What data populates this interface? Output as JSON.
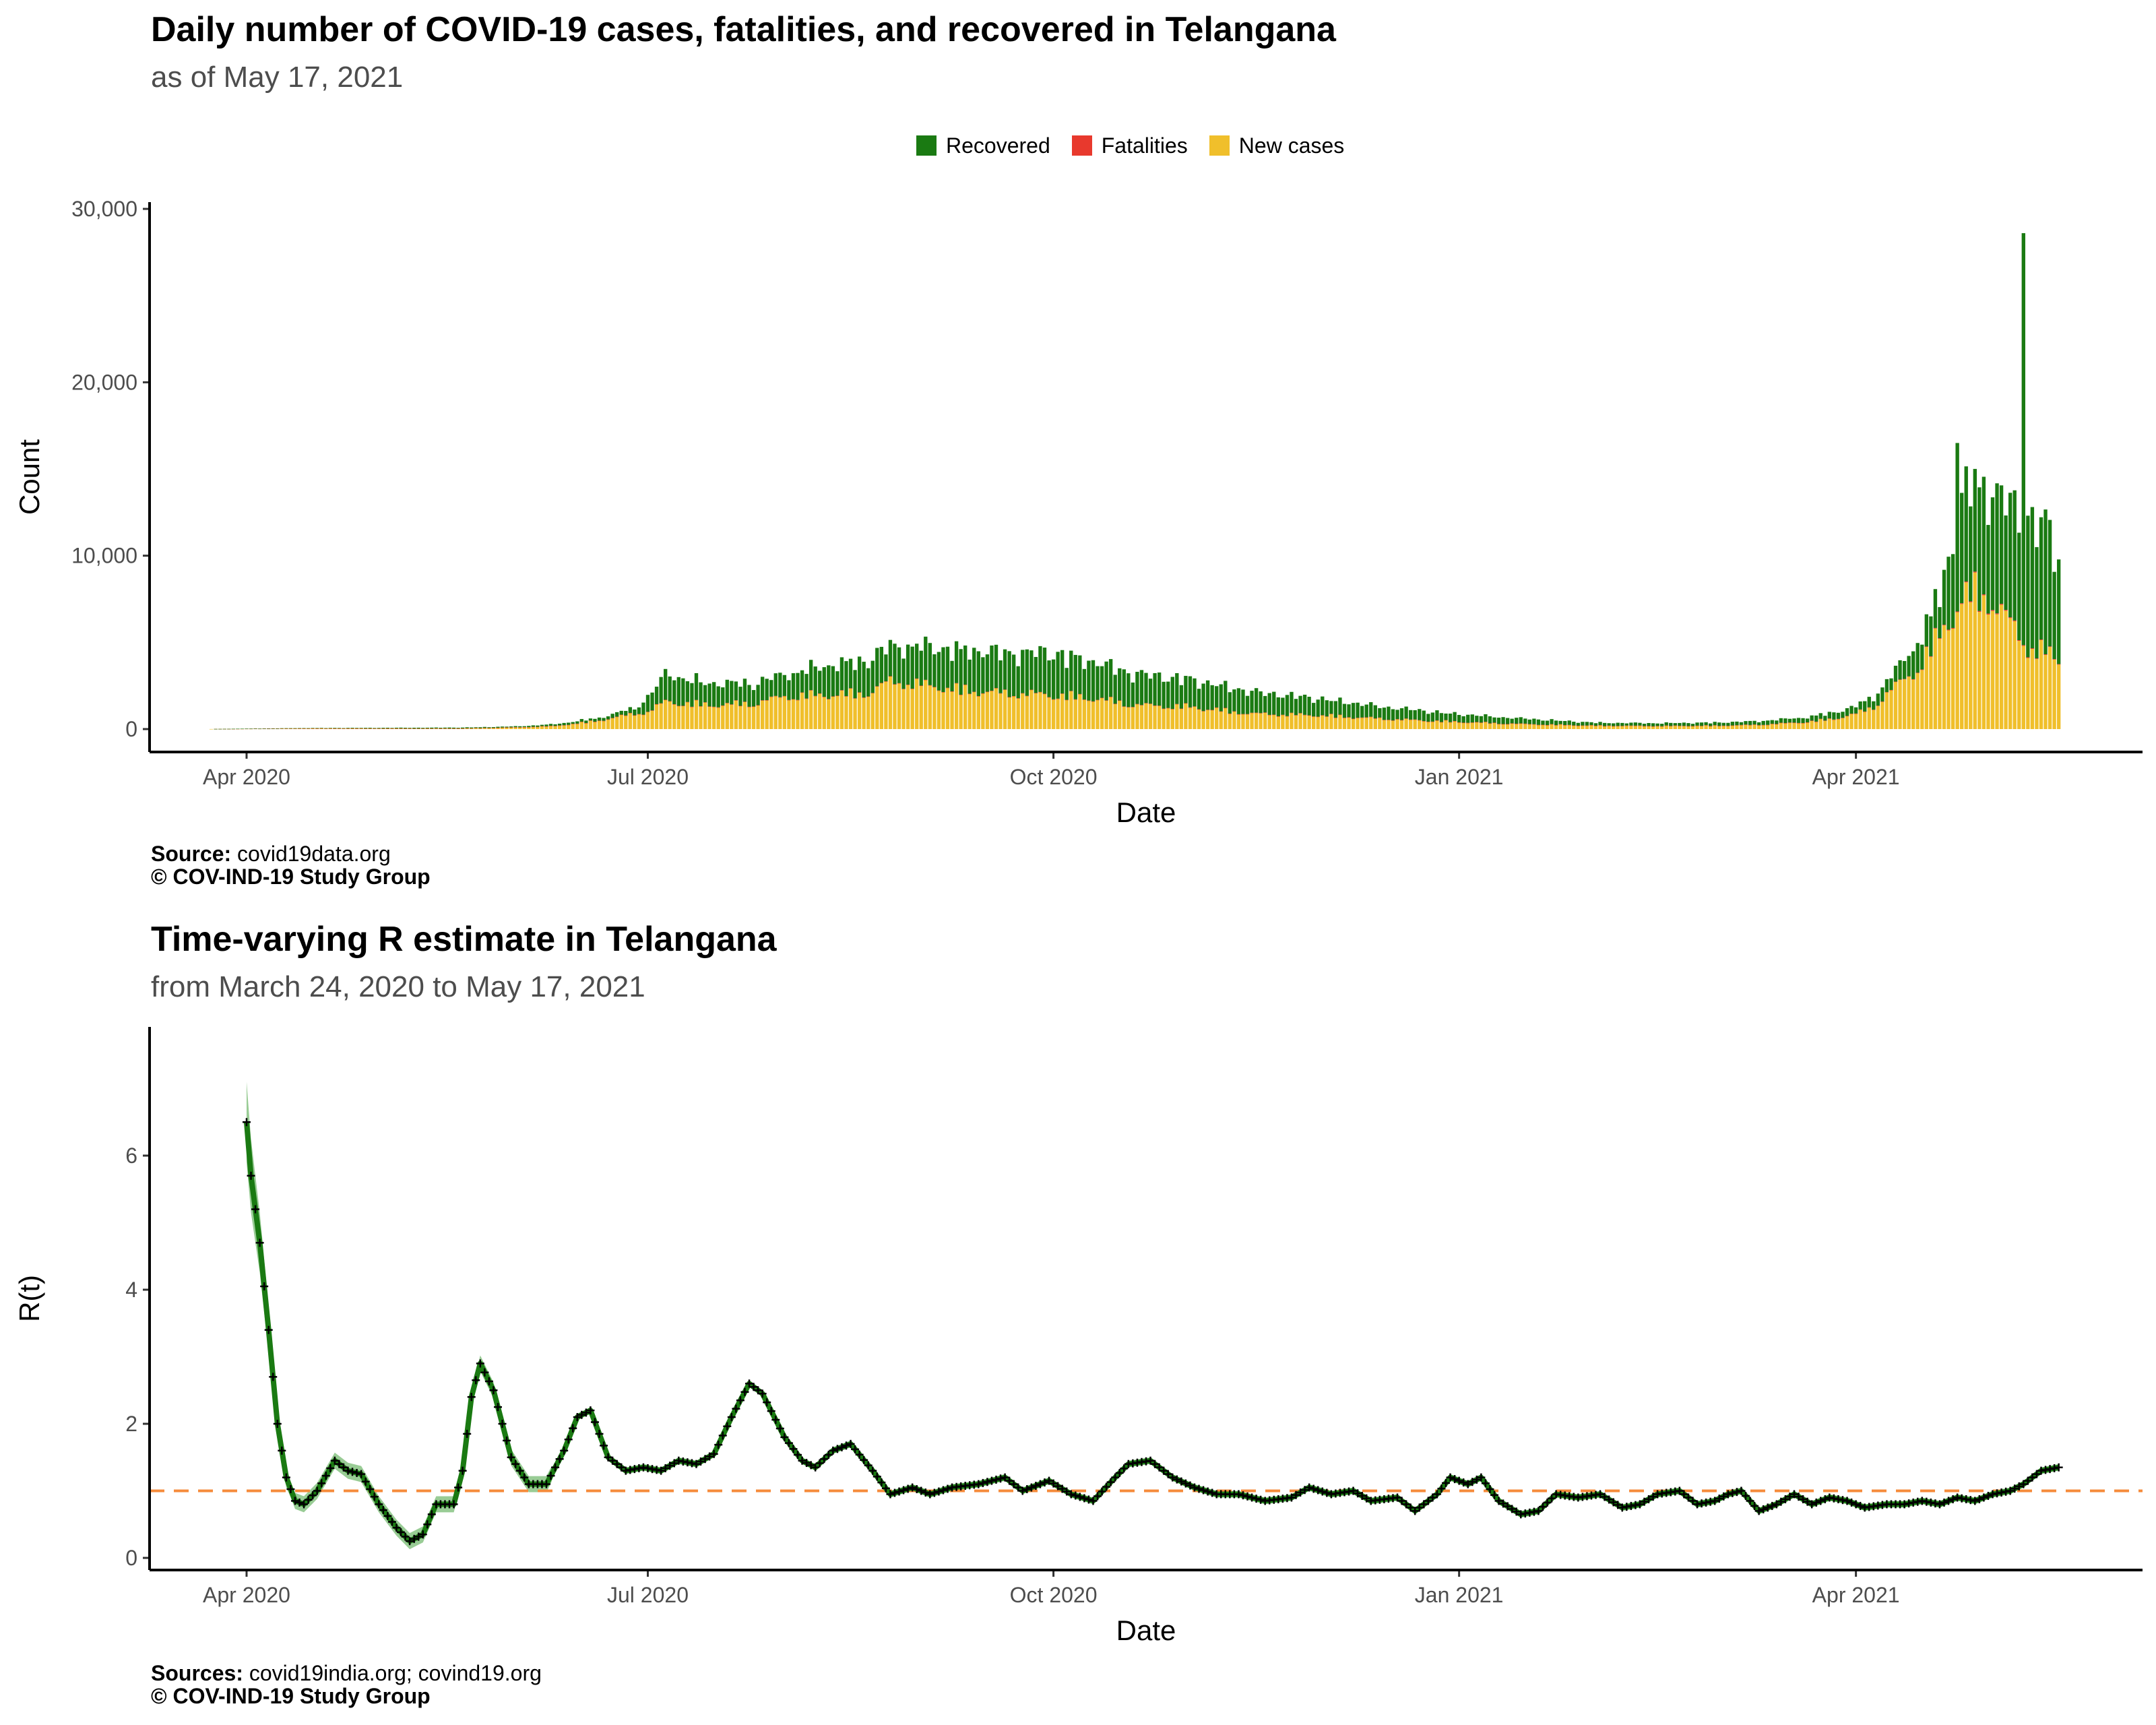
{
  "top": {
    "title": "Daily number of COVID-19 cases, fatalities, and recovered in Telangana",
    "subtitle": "as of May 17, 2021",
    "legend": [
      {
        "label": "Recovered",
        "color": "#1a7a12"
      },
      {
        "label": "Fatalities",
        "color": "#e8392d"
      },
      {
        "label": "New cases",
        "color": "#f0bf2b"
      }
    ],
    "source_label": "Source:",
    "source_text": "covid19data.org",
    "copyright": "© COV-IND-19 Study Group"
  },
  "bottom": {
    "title": "Time-varying R estimate in Telangana",
    "subtitle": "from March 24, 2020 to May 17, 2021",
    "source_label": "Sources:",
    "source_text": "covid19india.org; covind19.org",
    "copyright": "© COV-IND-19 Study Group"
  },
  "chart_data": [
    {
      "type": "bar",
      "stacked": true,
      "title": "Daily number of COVID-19 cases, fatalities, and recovered in Telangana",
      "subtitle": "as of May 17, 2021",
      "xlabel": "Date",
      "ylabel": "Count",
      "x_ticks": [
        "Apr 2020",
        "Jul 2020",
        "Oct 2020",
        "Jan 2021",
        "Apr 2021"
      ],
      "y_ticks": [
        "0",
        "10,000",
        "20,000",
        "30,000"
      ],
      "ylim": [
        0,
        30000
      ],
      "xlim": [
        "2020-03-10",
        "2021-06-05"
      ],
      "legend_position": "top",
      "series": [
        {
          "name": "New cases",
          "color": "#f0bf2b",
          "points": [
            [
              "2020-03-24",
              5
            ],
            [
              "2020-04-15",
              40
            ],
            [
              "2020-05-10",
              35
            ],
            [
              "2020-05-20",
              40
            ],
            [
              "2020-06-01",
              100
            ],
            [
              "2020-06-10",
              180
            ],
            [
              "2020-06-20",
              500
            ],
            [
              "2020-06-28",
              900
            ],
            [
              "2020-07-01",
              1000
            ],
            [
              "2020-07-05",
              1600
            ],
            [
              "2020-07-15",
              1400
            ],
            [
              "2020-07-25",
              1500
            ],
            [
              "2020-08-01",
              1900
            ],
            [
              "2020-08-10",
              2000
            ],
            [
              "2020-08-20",
              2100
            ],
            [
              "2020-08-25",
              2800
            ],
            [
              "2020-09-01",
              2600
            ],
            [
              "2020-09-10",
              2300
            ],
            [
              "2020-09-20",
              2100
            ],
            [
              "2020-10-01",
              2000
            ],
            [
              "2020-10-10",
              1800
            ],
            [
              "2020-10-20",
              1400
            ],
            [
              "2020-11-01",
              1300
            ],
            [
              "2020-11-15",
              900
            ],
            [
              "2020-12-01",
              800
            ],
            [
              "2020-12-15",
              600
            ],
            [
              "2021-01-01",
              420
            ],
            [
              "2021-01-15",
              300
            ],
            [
              "2021-02-01",
              200
            ],
            [
              "2021-02-15",
              180
            ],
            [
              "2021-03-01",
              200
            ],
            [
              "2021-03-10",
              250
            ],
            [
              "2021-03-20",
              400
            ],
            [
              "2021-03-27",
              600
            ],
            [
              "2021-04-01",
              900
            ],
            [
              "2021-04-05",
              1300
            ],
            [
              "2021-04-10",
              2500
            ],
            [
              "2021-04-15",
              3500
            ],
            [
              "2021-04-20",
              5500
            ],
            [
              "2021-04-25",
              7500
            ],
            [
              "2021-04-28",
              8000
            ],
            [
              "2021-05-01",
              7700
            ],
            [
              "2021-05-05",
              6500
            ],
            [
              "2021-05-10",
              4800
            ],
            [
              "2021-05-14",
              4500
            ],
            [
              "2021-05-17",
              3900
            ]
          ]
        },
        {
          "name": "Fatalities",
          "color": "#e8392d",
          "points": [
            [
              "2020-03-24",
              0
            ],
            [
              "2020-06-01",
              3
            ],
            [
              "2020-08-01",
              10
            ],
            [
              "2020-10-01",
              8
            ],
            [
              "2021-01-01",
              3
            ],
            [
              "2021-04-01",
              5
            ],
            [
              "2021-05-01",
              55
            ],
            [
              "2021-05-17",
              30
            ]
          ]
        },
        {
          "name": "Recovered",
          "color": "#1a7a12",
          "points": [
            [
              "2020-03-24",
              0
            ],
            [
              "2020-04-15",
              20
            ],
            [
              "2020-05-10",
              40
            ],
            [
              "2020-06-01",
              50
            ],
            [
              "2020-06-20",
              150
            ],
            [
              "2020-06-28",
              300
            ],
            [
              "2020-07-05",
              1500
            ],
            [
              "2020-07-15",
              1200
            ],
            [
              "2020-07-25",
              1100
            ],
            [
              "2020-08-01",
              1200
            ],
            [
              "2020-08-10",
              1600
            ],
            [
              "2020-08-20",
              1800
            ],
            [
              "2020-09-01",
              2100
            ],
            [
              "2020-09-10",
              2200
            ],
            [
              "2020-09-20",
              2200
            ],
            [
              "2020-10-01",
              2300
            ],
            [
              "2020-10-10",
              2000
            ],
            [
              "2020-10-20",
              1700
            ],
            [
              "2020-11-01",
              1500
            ],
            [
              "2020-11-15",
              1200
            ],
            [
              "2020-12-01",
              900
            ],
            [
              "2020-12-15",
              650
            ],
            [
              "2021-01-01",
              420
            ],
            [
              "2021-01-15",
              300
            ],
            [
              "2021-02-01",
              160
            ],
            [
              "2021-02-15",
              150
            ],
            [
              "2021-03-01",
              170
            ],
            [
              "2021-03-10",
              200
            ],
            [
              "2021-03-20",
              250
            ],
            [
              "2021-03-27",
              350
            ],
            [
              "2021-04-01",
              400
            ],
            [
              "2021-04-05",
              600
            ],
            [
              "2021-04-10",
              800
            ],
            [
              "2021-04-15",
              1500
            ],
            [
              "2021-04-20",
              2200
            ],
            [
              "2021-04-25",
              5500
            ],
            [
              "2021-04-28",
              6000
            ],
            [
              "2021-05-01",
              6000
            ],
            [
              "2021-05-05",
              6500
            ],
            [
              "2021-05-08",
              6200
            ],
            [
              "2021-05-10",
              7000
            ],
            [
              "2021-05-14",
              7000
            ],
            [
              "2021-05-17",
              5600
            ]
          ],
          "spikes": [
            [
              "2021-04-24",
              16500
            ],
            [
              "2021-05-09",
              28600
            ]
          ]
        }
      ]
    },
    {
      "type": "line",
      "title": "Time-varying R estimate in Telangana",
      "subtitle": "from March 24, 2020 to May 17, 2021",
      "xlabel": "Date",
      "ylabel": "R(t)",
      "x_ticks": [
        "Apr 2020",
        "Jul 2020",
        "Oct 2020",
        "Jan 2021",
        "Apr 2021"
      ],
      "y_ticks": [
        "0",
        "2",
        "4",
        "6"
      ],
      "ylim": [
        -0.2,
        7.9
      ],
      "xlim": [
        "2020-03-10",
        "2021-06-05"
      ],
      "reference_line": {
        "y": 1,
        "color": "#f58b3b",
        "style": "dashed"
      },
      "line_color": "#1a7a12",
      "band_color": "#7fbf7a",
      "series": [
        {
          "name": "R(t)",
          "points": [
            [
              "2020-04-01",
              6.5
            ],
            [
              "2020-04-02",
              5.7
            ],
            [
              "2020-04-04",
              4.7
            ],
            [
              "2020-04-06",
              3.4
            ],
            [
              "2020-04-08",
              2.0
            ],
            [
              "2020-04-10",
              1.2
            ],
            [
              "2020-04-12",
              0.85
            ],
            [
              "2020-04-14",
              0.8
            ],
            [
              "2020-04-17",
              1.0
            ],
            [
              "2020-04-21",
              1.45
            ],
            [
              "2020-04-24",
              1.3
            ],
            [
              "2020-04-27",
              1.25
            ],
            [
              "2020-05-01",
              0.8
            ],
            [
              "2020-05-05",
              0.45
            ],
            [
              "2020-05-08",
              0.25
            ],
            [
              "2020-05-11",
              0.35
            ],
            [
              "2020-05-14",
              0.8
            ],
            [
              "2020-05-18",
              0.8
            ],
            [
              "2020-05-20",
              1.3
            ],
            [
              "2020-05-22",
              2.4
            ],
            [
              "2020-05-24",
              2.9
            ],
            [
              "2020-05-27",
              2.5
            ],
            [
              "2020-05-31",
              1.5
            ],
            [
              "2020-06-04",
              1.1
            ],
            [
              "2020-06-08",
              1.1
            ],
            [
              "2020-06-12",
              1.6
            ],
            [
              "2020-06-15",
              2.1
            ],
            [
              "2020-06-18",
              2.2
            ],
            [
              "2020-06-22",
              1.5
            ],
            [
              "2020-06-26",
              1.3
            ],
            [
              "2020-06-30",
              1.35
            ],
            [
              "2020-07-04",
              1.3
            ],
            [
              "2020-07-08",
              1.45
            ],
            [
              "2020-07-12",
              1.4
            ],
            [
              "2020-07-16",
              1.55
            ],
            [
              "2020-07-20",
              2.1
            ],
            [
              "2020-07-24",
              2.6
            ],
            [
              "2020-07-27",
              2.45
            ],
            [
              "2020-08-01",
              1.8
            ],
            [
              "2020-08-05",
              1.45
            ],
            [
              "2020-08-08",
              1.35
            ],
            [
              "2020-08-12",
              1.6
            ],
            [
              "2020-08-16",
              1.7
            ],
            [
              "2020-08-21",
              1.3
            ],
            [
              "2020-08-25",
              0.95
            ],
            [
              "2020-08-30",
              1.05
            ],
            [
              "2020-09-03",
              0.95
            ],
            [
              "2020-09-08",
              1.05
            ],
            [
              "2020-09-14",
              1.1
            ],
            [
              "2020-09-20",
              1.2
            ],
            [
              "2020-09-24",
              1.0
            ],
            [
              "2020-09-30",
              1.15
            ],
            [
              "2020-10-05",
              0.95
            ],
            [
              "2020-10-10",
              0.85
            ],
            [
              "2020-10-15",
              1.2
            ],
            [
              "2020-10-18",
              1.4
            ],
            [
              "2020-10-23",
              1.45
            ],
            [
              "2020-10-28",
              1.2
            ],
            [
              "2020-11-02",
              1.05
            ],
            [
              "2020-11-07",
              0.95
            ],
            [
              "2020-11-12",
              0.95
            ],
            [
              "2020-11-18",
              0.85
            ],
            [
              "2020-11-24",
              0.9
            ],
            [
              "2020-11-28",
              1.05
            ],
            [
              "2020-12-03",
              0.95
            ],
            [
              "2020-12-08",
              1.0
            ],
            [
              "2020-12-12",
              0.85
            ],
            [
              "2020-12-18",
              0.9
            ],
            [
              "2020-12-22",
              0.7
            ],
            [
              "2020-12-27",
              0.95
            ],
            [
              "2020-12-30",
              1.2
            ],
            [
              "2021-01-03",
              1.1
            ],
            [
              "2021-01-06",
              1.2
            ],
            [
              "2021-01-10",
              0.85
            ],
            [
              "2021-01-15",
              0.65
            ],
            [
              "2021-01-19",
              0.7
            ],
            [
              "2021-01-23",
              0.95
            ],
            [
              "2021-01-28",
              0.9
            ],
            [
              "2021-02-02",
              0.95
            ],
            [
              "2021-02-07",
              0.75
            ],
            [
              "2021-02-11",
              0.8
            ],
            [
              "2021-02-15",
              0.95
            ],
            [
              "2021-02-20",
              1.0
            ],
            [
              "2021-02-24",
              0.8
            ],
            [
              "2021-02-28",
              0.85
            ],
            [
              "2021-03-03",
              0.95
            ],
            [
              "2021-03-06",
              1.0
            ],
            [
              "2021-03-10",
              0.7
            ],
            [
              "2021-03-14",
              0.8
            ],
            [
              "2021-03-18",
              0.95
            ],
            [
              "2021-03-22",
              0.8
            ],
            [
              "2021-03-26",
              0.9
            ],
            [
              "2021-03-30",
              0.85
            ],
            [
              "2021-04-03",
              0.75
            ],
            [
              "2021-04-08",
              0.8
            ],
            [
              "2021-04-12",
              0.8
            ],
            [
              "2021-04-16",
              0.85
            ],
            [
              "2021-04-20",
              0.8
            ],
            [
              "2021-04-24",
              0.9
            ],
            [
              "2021-04-28",
              0.85
            ],
            [
              "2021-05-02",
              0.95
            ],
            [
              "2021-05-06",
              1.0
            ],
            [
              "2021-05-09",
              1.1
            ],
            [
              "2021-05-13",
              1.3
            ],
            [
              "2021-05-17",
              1.35
            ]
          ]
        }
      ]
    }
  ]
}
